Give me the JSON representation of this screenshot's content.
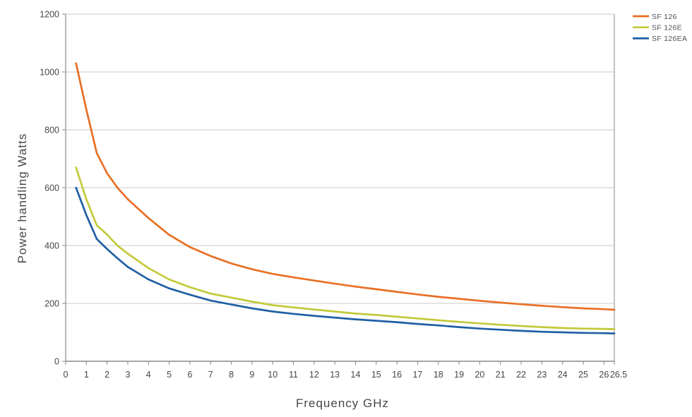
{
  "chart_data": {
    "type": "line",
    "title": "",
    "xlabel": "Frequency GHz",
    "ylabel": "Power handling Watts",
    "xlim": [
      0,
      26.5
    ],
    "ylim": [
      0,
      1200
    ],
    "grid": "horizontal gridlines every 200 W, plot framed on left, right, top, bottom",
    "legend_position": "top-right outside plot",
    "y_ticks": [
      0,
      200,
      400,
      600,
      800,
      1000,
      1200
    ],
    "x_tick_values": [
      0,
      1,
      2,
      3,
      4,
      5,
      6,
      7,
      8,
      9,
      10,
      11,
      12,
      13,
      14,
      15,
      16,
      17,
      18,
      19,
      20,
      21,
      22,
      23,
      24,
      25,
      26,
      26.5
    ],
    "x_tick_labels": [
      "0",
      "1",
      "2",
      "3",
      "4",
      "5",
      "6",
      "7",
      "8",
      "9",
      "10",
      "11",
      "12",
      "13",
      "14",
      "15",
      "16",
      "17",
      "18",
      "19",
      "20",
      "21",
      "22",
      "23",
      "24",
      "25",
      "26",
      "26.5"
    ],
    "x": [
      0.5,
      1,
      1.5,
      2,
      2.5,
      3,
      4,
      5,
      6,
      7,
      8,
      9,
      10,
      11,
      12,
      13,
      14,
      15,
      16,
      17,
      18,
      19,
      20,
      21,
      22,
      23,
      24,
      25,
      26,
      26.5
    ],
    "series": [
      {
        "name": "SF 126",
        "color": "#E96F24",
        "values": [
          1030,
          870,
          720,
          650,
          600,
          560,
          495,
          437,
          395,
          364,
          338,
          318,
          302,
          290,
          279,
          268,
          258,
          249,
          240,
          231,
          223,
          216,
          209,
          203,
          197,
          192,
          187,
          183,
          180,
          178
        ]
      },
      {
        "name": "SF 126E",
        "color": "#C3C939",
        "values": [
          670,
          560,
          470,
          438,
          400,
          372,
          322,
          283,
          256,
          234,
          220,
          206,
          194,
          186,
          179,
          172,
          165,
          160,
          154,
          148,
          142,
          136,
          131,
          126,
          122,
          118,
          115,
          113,
          112,
          111
        ]
      },
      {
        "name": "SF 126EA",
        "color": "#1F5FA5",
        "values": [
          600,
          505,
          423,
          388,
          356,
          326,
          283,
          252,
          230,
          210,
          196,
          183,
          172,
          164,
          157,
          151,
          145,
          140,
          135,
          129,
          124,
          118,
          113,
          109,
          105,
          102,
          100,
          98,
          97,
          96
        ]
      }
    ]
  },
  "colors": {
    "background": "#FFFFFF",
    "gridline": "#C8C8C8",
    "axis": "#8A8A8E",
    "plot_border": "#9C9C9C",
    "tick_text": "#46464C"
  }
}
